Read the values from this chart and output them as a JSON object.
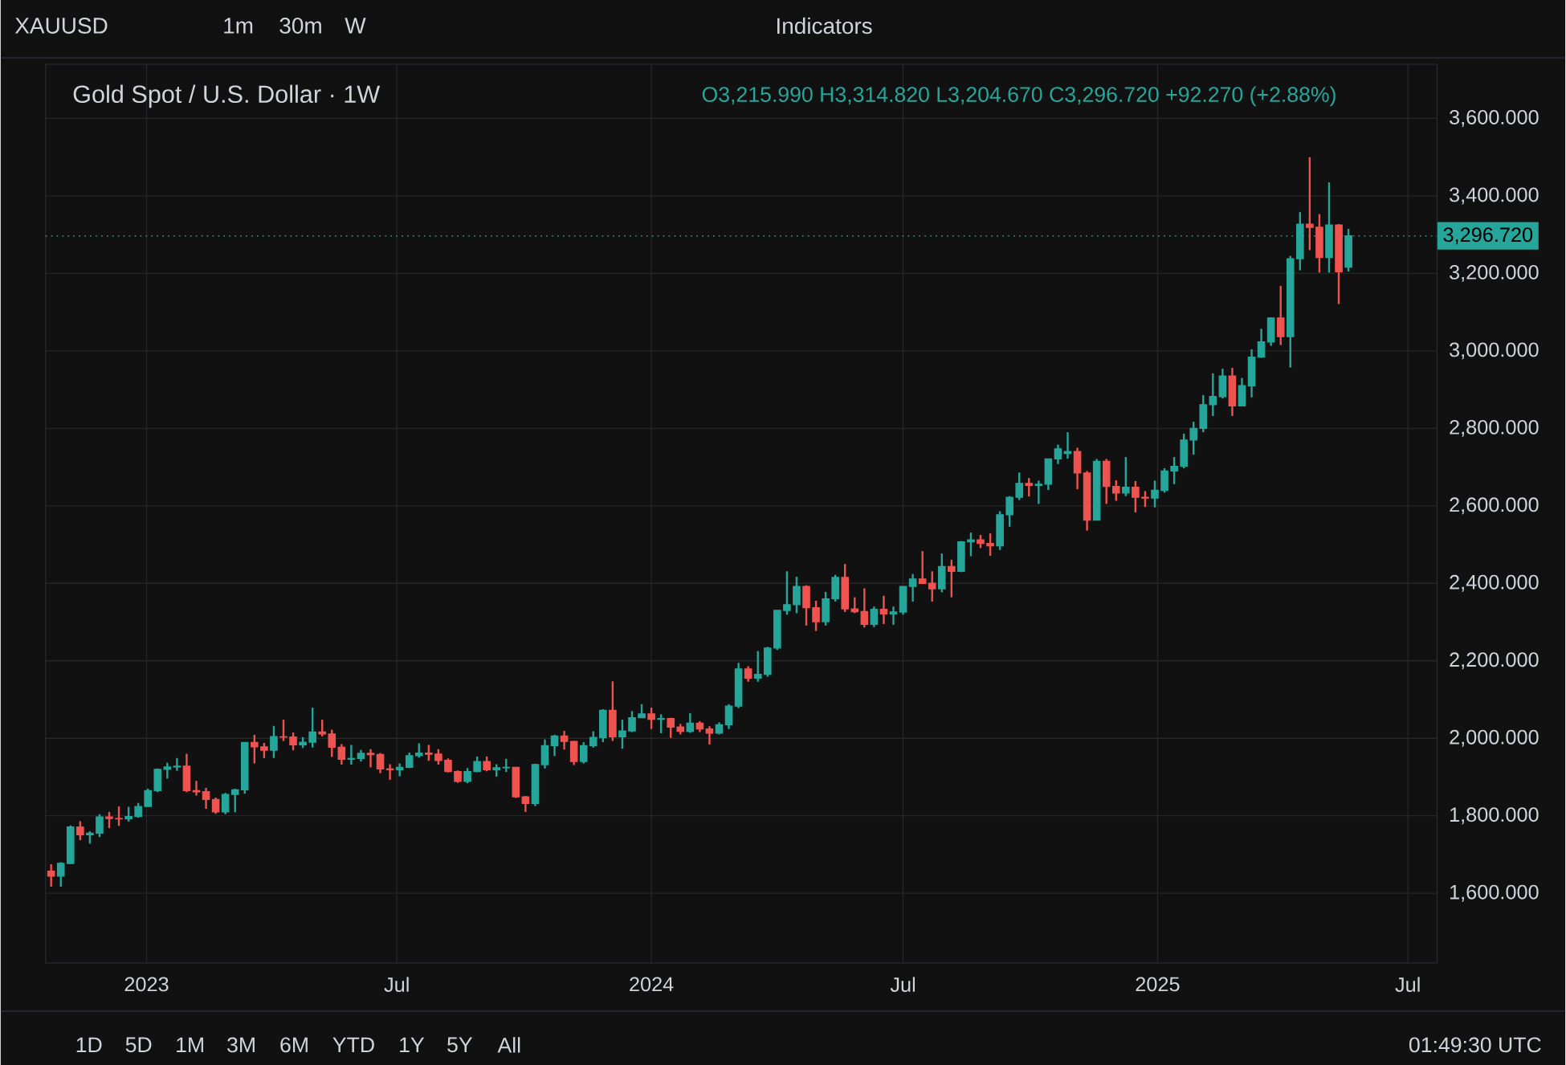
{
  "chart_data": {
    "type": "candlestick",
    "title": "Gold Spot / U.S. Dollar · 1W",
    "annotations": [
      "XAUUSD",
      "1m",
      "30m",
      "W",
      "Indicators",
      "O3,215.990 H3,314.820 L3,204.670 C3,296.720 +92.270 (+2.88%)",
      "1D",
      "5D",
      "1M",
      "3M",
      "6M",
      "YTD",
      "1Y",
      "5Y",
      "All",
      "01:49:30 UTC"
    ],
    "x": [
      "2022-10-24",
      "2022-10-31",
      "2022-11-07",
      "2022-11-14",
      "2022-11-21",
      "2022-11-28",
      "2022-12-05",
      "2022-12-12",
      "2022-12-19",
      "2022-12-26",
      "2023-01-02",
      "2023-01-09",
      "2023-01-16",
      "2023-01-23",
      "2023-01-30",
      "2023-02-06",
      "2023-02-13",
      "2023-02-20",
      "2023-02-27",
      "2023-03-06",
      "2023-03-13",
      "2023-03-20",
      "2023-03-27",
      "2023-04-03",
      "2023-04-10",
      "2023-04-17",
      "2023-04-24",
      "2023-05-01",
      "2023-05-08",
      "2023-05-15",
      "2023-05-22",
      "2023-05-29",
      "2023-06-05",
      "2023-06-12",
      "2023-06-19",
      "2023-06-26",
      "2023-07-03",
      "2023-07-10",
      "2023-07-17",
      "2023-07-24",
      "2023-07-31",
      "2023-08-07",
      "2023-08-14",
      "2023-08-21",
      "2023-08-28",
      "2023-09-04",
      "2023-09-11",
      "2023-09-18",
      "2023-09-25",
      "2023-10-02",
      "2023-10-09",
      "2023-10-16",
      "2023-10-23",
      "2023-10-30",
      "2023-11-06",
      "2023-11-13",
      "2023-11-20",
      "2023-11-27",
      "2023-12-04",
      "2023-12-11",
      "2023-12-18",
      "2023-12-25",
      "2024-01-01",
      "2024-01-08",
      "2024-01-15",
      "2024-01-22",
      "2024-01-29",
      "2024-02-05",
      "2024-02-12",
      "2024-02-19",
      "2024-02-26",
      "2024-03-04",
      "2024-03-11",
      "2024-03-18",
      "2024-03-25",
      "2024-04-01",
      "2024-04-08",
      "2024-04-15",
      "2024-04-22",
      "2024-04-29",
      "2024-05-06",
      "2024-05-13",
      "2024-05-20",
      "2024-05-27",
      "2024-06-03",
      "2024-06-10",
      "2024-06-17",
      "2024-06-24",
      "2024-07-01",
      "2024-07-08",
      "2024-07-15",
      "2024-07-22",
      "2024-07-29",
      "2024-08-05",
      "2024-08-12",
      "2024-08-19",
      "2024-08-26",
      "2024-09-02",
      "2024-09-09",
      "2024-09-16",
      "2024-09-23",
      "2024-09-30",
      "2024-10-07",
      "2024-10-14",
      "2024-10-21",
      "2024-10-28",
      "2024-11-04",
      "2024-11-11",
      "2024-11-18",
      "2024-11-25",
      "2024-12-02",
      "2024-12-09",
      "2024-12-16",
      "2024-12-23",
      "2024-12-30",
      "2025-01-06",
      "2025-01-13",
      "2025-01-20",
      "2025-01-27",
      "2025-02-03",
      "2025-02-10",
      "2025-02-17",
      "2025-02-24",
      "2025-03-03",
      "2025-03-10",
      "2025-03-17",
      "2025-03-24",
      "2025-03-31",
      "2025-04-07",
      "2025-04-14",
      "2025-04-21",
      "2025-04-28",
      "2025-05-05",
      "2025-05-12",
      "2025-05-19"
    ],
    "ohlc": [
      [
        1657,
        1675,
        1617,
        1644
      ],
      [
        1644,
        1680,
        1617,
        1677
      ],
      [
        1677,
        1775,
        1676,
        1771
      ],
      [
        1771,
        1786,
        1737,
        1751
      ],
      [
        1751,
        1760,
        1728,
        1755
      ],
      [
        1755,
        1804,
        1745,
        1797
      ],
      [
        1797,
        1810,
        1768,
        1793
      ],
      [
        1793,
        1824,
        1774,
        1792
      ],
      [
        1792,
        1823,
        1785,
        1798
      ],
      [
        1798,
        1833,
        1795,
        1824
      ],
      [
        1824,
        1870,
        1824,
        1865
      ],
      [
        1865,
        1922,
        1861,
        1920
      ],
      [
        1920,
        1937,
        1896,
        1926
      ],
      [
        1926,
        1949,
        1916,
        1928
      ],
      [
        1928,
        1960,
        1861,
        1865
      ],
      [
        1865,
        1890,
        1852,
        1862
      ],
      [
        1862,
        1872,
        1818,
        1842
      ],
      [
        1842,
        1847,
        1805,
        1810
      ],
      [
        1810,
        1859,
        1804,
        1855
      ],
      [
        1855,
        1870,
        1809,
        1867
      ],
      [
        1867,
        1989,
        1857,
        1989
      ],
      [
        1989,
        2009,
        1935,
        1978
      ],
      [
        1978,
        1988,
        1949,
        1969
      ],
      [
        1969,
        2032,
        1949,
        2004
      ],
      [
        2004,
        2048,
        1993,
        2003
      ],
      [
        2003,
        2015,
        1969,
        1983
      ],
      [
        1983,
        2003,
        1975,
        1990
      ],
      [
        1990,
        2079,
        1976,
        2016
      ],
      [
        2016,
        2048,
        2005,
        2011
      ],
      [
        2011,
        2022,
        1952,
        1977
      ],
      [
        1977,
        1985,
        1932,
        1946
      ],
      [
        1946,
        1983,
        1932,
        1948
      ],
      [
        1948,
        1970,
        1940,
        1961
      ],
      [
        1961,
        1972,
        1925,
        1958
      ],
      [
        1958,
        1962,
        1910,
        1921
      ],
      [
        1921,
        1933,
        1893,
        1919
      ],
      [
        1919,
        1935,
        1902,
        1925
      ],
      [
        1925,
        1963,
        1923,
        1955
      ],
      [
        1955,
        1987,
        1950,
        1962
      ],
      [
        1962,
        1983,
        1942,
        1959
      ],
      [
        1959,
        1972,
        1932,
        1943
      ],
      [
        1943,
        1948,
        1912,
        1914
      ],
      [
        1914,
        1917,
        1885,
        1889
      ],
      [
        1889,
        1923,
        1884,
        1914
      ],
      [
        1914,
        1953,
        1913,
        1940
      ],
      [
        1940,
        1953,
        1915,
        1919
      ],
      [
        1919,
        1933,
        1901,
        1924
      ],
      [
        1924,
        1947,
        1913,
        1925
      ],
      [
        1925,
        1926,
        1846,
        1849
      ],
      [
        1849,
        1851,
        1810,
        1832
      ],
      [
        1832,
        1934,
        1825,
        1932
      ],
      [
        1932,
        1997,
        1922,
        1981
      ],
      [
        1981,
        2009,
        1954,
        2006
      ],
      [
        2006,
        2019,
        1971,
        1992
      ],
      [
        1992,
        1993,
        1931,
        1940
      ],
      [
        1940,
        1990,
        1935,
        1981
      ],
      [
        1981,
        2018,
        1976,
        2002
      ],
      [
        2002,
        2075,
        1990,
        2072
      ],
      [
        2072,
        2147,
        1993,
        2004
      ],
      [
        2004,
        2048,
        1973,
        2019
      ],
      [
        2019,
        2070,
        2016,
        2053
      ],
      [
        2053,
        2088,
        2053,
        2063
      ],
      [
        2063,
        2079,
        2024,
        2049
      ],
      [
        2049,
        2062,
        2013,
        2051
      ],
      [
        2051,
        2053,
        2001,
        2029
      ],
      [
        2029,
        2037,
        2010,
        2018
      ],
      [
        2018,
        2065,
        2014,
        2039
      ],
      [
        2039,
        2044,
        2016,
        2024
      ],
      [
        2024,
        2031,
        1984,
        2013
      ],
      [
        2013,
        2041,
        2010,
        2035
      ],
      [
        2035,
        2088,
        2024,
        2083
      ],
      [
        2083,
        2195,
        2078,
        2179
      ],
      [
        2179,
        2186,
        2146,
        2155
      ],
      [
        2155,
        2225,
        2146,
        2165
      ],
      [
        2165,
        2236,
        2159,
        2233
      ],
      [
        2233,
        2330,
        2228,
        2330
      ],
      [
        2330,
        2431,
        2319,
        2345
      ],
      [
        2345,
        2417,
        2323,
        2392
      ],
      [
        2392,
        2395,
        2291,
        2337
      ],
      [
        2337,
        2355,
        2277,
        2301
      ],
      [
        2301,
        2378,
        2291,
        2360
      ],
      [
        2360,
        2422,
        2353,
        2415
      ],
      [
        2415,
        2450,
        2326,
        2334
      ],
      [
        2334,
        2364,
        2323,
        2327
      ],
      [
        2327,
        2387,
        2286,
        2294
      ],
      [
        2294,
        2340,
        2287,
        2333
      ],
      [
        2333,
        2368,
        2295,
        2321
      ],
      [
        2321,
        2340,
        2293,
        2326
      ],
      [
        2326,
        2392,
        2319,
        2392
      ],
      [
        2392,
        2424,
        2353,
        2411
      ],
      [
        2411,
        2483,
        2398,
        2400
      ],
      [
        2400,
        2431,
        2353,
        2386
      ],
      [
        2386,
        2477,
        2377,
        2443
      ],
      [
        2443,
        2461,
        2364,
        2431
      ],
      [
        2431,
        2509,
        2429,
        2507
      ],
      [
        2507,
        2531,
        2470,
        2512
      ],
      [
        2512,
        2525,
        2491,
        2503
      ],
      [
        2503,
        2529,
        2471,
        2497
      ],
      [
        2497,
        2586,
        2486,
        2577
      ],
      [
        2577,
        2625,
        2546,
        2622
      ],
      [
        2622,
        2686,
        2615,
        2658
      ],
      [
        2658,
        2672,
        2624,
        2653
      ],
      [
        2653,
        2665,
        2605,
        2656
      ],
      [
        2656,
        2722,
        2641,
        2721
      ],
      [
        2721,
        2758,
        2708,
        2747
      ],
      [
        2735,
        2790,
        2722,
        2740
      ],
      [
        2740,
        2750,
        2643,
        2685
      ],
      [
        2685,
        2690,
        2536,
        2563
      ],
      [
        2563,
        2721,
        2563,
        2715
      ],
      [
        2715,
        2721,
        2605,
        2650
      ],
      [
        2650,
        2666,
        2613,
        2633
      ],
      [
        2633,
        2726,
        2625,
        2648
      ],
      [
        2648,
        2664,
        2583,
        2622
      ],
      [
        2622,
        2638,
        2597,
        2620
      ],
      [
        2620,
        2665,
        2596,
        2640
      ],
      [
        2640,
        2697,
        2634,
        2690
      ],
      [
        2690,
        2726,
        2656,
        2702
      ],
      [
        2702,
        2786,
        2697,
        2770
      ],
      [
        2770,
        2817,
        2732,
        2800
      ],
      [
        2800,
        2886,
        2790,
        2861
      ],
      [
        2861,
        2942,
        2832,
        2882
      ],
      [
        2882,
        2954,
        2877,
        2935
      ],
      [
        2935,
        2956,
        2832,
        2858
      ],
      [
        2858,
        2930,
        2858,
        2910
      ],
      [
        2910,
        3004,
        2880,
        2984
      ],
      [
        2984,
        3057,
        2982,
        3023
      ],
      [
        3023,
        3086,
        3013,
        3085
      ],
      [
        3085,
        3168,
        3015,
        3037
      ],
      [
        3037,
        3245,
        2957,
        3238
      ],
      [
        3238,
        3358,
        3208,
        3327
      ],
      [
        3327,
        3500,
        3260,
        3319
      ],
      [
        3319,
        3353,
        3202,
        3241
      ],
      [
        3241,
        3435,
        3202,
        3325
      ],
      [
        3325,
        3327,
        3121,
        3204
      ],
      [
        3215.99,
        3314.82,
        3204.67,
        3296.72
      ]
    ],
    "colors": [
      "#ef5350",
      "#26a69a",
      "#26a69a",
      "#ef5350",
      "#26a69a",
      "#26a69a",
      "#ef5350",
      "#ef5350",
      "#26a69a",
      "#26a69a",
      "#26a69a",
      "#26a69a",
      "#26a69a",
      "#26a69a",
      "#ef5350",
      "#ef5350",
      "#ef5350",
      "#ef5350",
      "#26a69a",
      "#26a69a",
      "#26a69a",
      "#ef5350",
      "#ef5350",
      "#26a69a",
      "#ef5350",
      "#ef5350",
      "#26a69a",
      "#26a69a",
      "#ef5350",
      "#ef5350",
      "#ef5350",
      "#26a69a",
      "#26a69a",
      "#ef5350",
      "#ef5350",
      "#ef5350",
      "#26a69a",
      "#26a69a",
      "#26a69a",
      "#ef5350",
      "#ef5350",
      "#ef5350",
      "#ef5350",
      "#26a69a",
      "#26a69a",
      "#ef5350",
      "#26a69a",
      "#26a69a",
      "#ef5350",
      "#ef5350",
      "#26a69a",
      "#26a69a",
      "#26a69a",
      "#ef5350",
      "#ef5350",
      "#26a69a",
      "#26a69a",
      "#26a69a",
      "#ef5350",
      "#26a69a",
      "#26a69a",
      "#26a69a",
      "#ef5350",
      "#26a69a",
      "#ef5350",
      "#ef5350",
      "#26a69a",
      "#ef5350",
      "#ef5350",
      "#26a69a",
      "#26a69a",
      "#26a69a",
      "#ef5350",
      "#26a69a",
      "#26a69a",
      "#26a69a",
      "#26a69a",
      "#26a69a",
      "#ef5350",
      "#ef5350",
      "#26a69a",
      "#26a69a",
      "#ef5350",
      "#ef5350",
      "#ef5350",
      "#26a69a",
      "#ef5350",
      "#26a69a",
      "#26a69a",
      "#26a69a",
      "#ef5350",
      "#ef5350",
      "#26a69a",
      "#ef5350",
      "#26a69a",
      "#26a69a",
      "#ef5350",
      "#ef5350",
      "#26a69a",
      "#26a69a",
      "#26a69a",
      "#ef5350",
      "#26a69a",
      "#26a69a",
      "#26a69a",
      "#26a69a",
      "#ef5350",
      "#ef5350",
      "#26a69a",
      "#ef5350",
      "#ef5350",
      "#26a69a",
      "#ef5350",
      "#ef5350",
      "#26a69a",
      "#26a69a",
      "#26a69a",
      "#26a69a",
      "#26a69a",
      "#26a69a",
      "#26a69a",
      "#26a69a",
      "#ef5350",
      "#26a69a",
      "#26a69a",
      "#26a69a",
      "#26a69a",
      "#ef5350",
      "#26a69a",
      "#26a69a",
      "#ef5350",
      "#ef5350",
      "#26a69a",
      "#ef5350",
      "#26a69a"
    ],
    "xlim": [
      "2022-10-20",
      "2025-07-22"
    ],
    "xticks": [
      {
        "value": "2023-01-01",
        "label": "2023"
      },
      {
        "value": "2023-07-01",
        "label": "Jul"
      },
      {
        "value": "2024-01-01",
        "label": "2024"
      },
      {
        "value": "2024-07-01",
        "label": "Jul"
      },
      {
        "value": "2025-01-01",
        "label": "2025"
      },
      {
        "value": "2025-07-01",
        "label": "Jul"
      }
    ],
    "ylim": [
      1420,
      3740
    ],
    "yticks": [
      {
        "value": 1600,
        "label": "1,600.000"
      },
      {
        "value": 1800,
        "label": "1,800.000"
      },
      {
        "value": 2000,
        "label": "2,000.000"
      },
      {
        "value": 2200,
        "label": "2,200.000"
      },
      {
        "value": 2400,
        "label": "2,400.000"
      },
      {
        "value": 2600,
        "label": "2,600.000"
      },
      {
        "value": 2800,
        "label": "2,800.000"
      },
      {
        "value": 3000,
        "label": "3,000.000"
      },
      {
        "value": 3200,
        "label": "3,200.000"
      },
      {
        "value": 3400,
        "label": "3,400.000"
      },
      {
        "value": 3600,
        "label": "3,600.000"
      }
    ],
    "grid": true,
    "ref_lines": [
      {
        "axis": "y",
        "value": 3296.72,
        "label": "3,296.720",
        "color": "#26a69a",
        "line_style": "dotted"
      }
    ]
  }
}
